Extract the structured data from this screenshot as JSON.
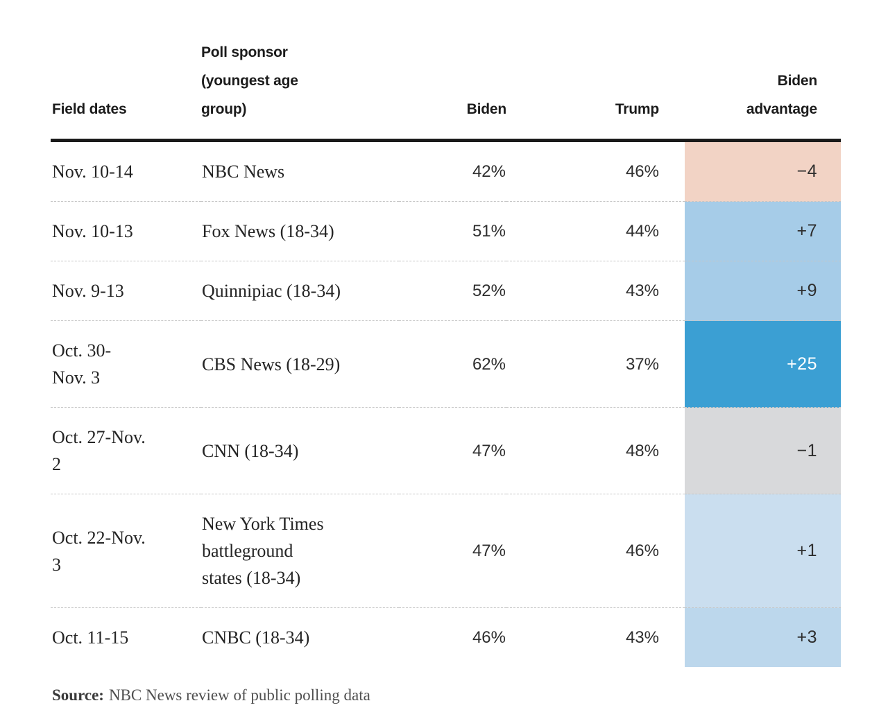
{
  "chart_data": {
    "type": "table",
    "columns": [
      "Field dates",
      "Poll sponsor (youngest age group)",
      "Biden",
      "Trump",
      "Biden advantage"
    ],
    "rows": [
      [
        "Nov. 10-14",
        "NBC News",
        "42%",
        "46%",
        "−4"
      ],
      [
        "Nov. 10-13",
        "Fox News (18-34)",
        "51%",
        "44%",
        "+7"
      ],
      [
        "Nov. 9-13",
        "Quinnipiac (18-34)",
        "52%",
        "43%",
        "+9"
      ],
      [
        "Oct. 30-Nov. 3",
        "CBS News (18-29)",
        "62%",
        "37%",
        "+25"
      ],
      [
        "Oct. 27-Nov. 2",
        "CNN (18-34)",
        "47%",
        "48%",
        "−1"
      ],
      [
        "Oct. 22-Nov. 3",
        "New York Times battleground states (18-34)",
        "47%",
        "46%",
        "+1"
      ],
      [
        "Oct. 11-15",
        "CNBC (18-34)",
        "46%",
        "43%",
        "+3"
      ]
    ],
    "biden_values": [
      42,
      51,
      52,
      62,
      47,
      47,
      46
    ],
    "trump_values": [
      46,
      44,
      43,
      37,
      48,
      46,
      43
    ],
    "advantage_values": [
      -4,
      7,
      9,
      25,
      -1,
      1,
      3
    ],
    "source": "NBC News review of public polling data",
    "legend_position": "none",
    "grid": "dashed-row-separators"
  },
  "colors": {
    "negative_pink": "#f2d3c5",
    "neutral_gray": "#d8d9db",
    "blue_light": "#cadeef",
    "blue_medium_light": "#bcd7ec",
    "blue_medium": "#a6cce8",
    "blue_strong": "#3b9fd3",
    "header_rule": "#1a1a1a",
    "dashed_rule": "#c5c5c5"
  },
  "table": {
    "headers": {
      "dates": "Field dates",
      "sponsor": "Poll sponsor\n(youngest age\ngroup)",
      "biden": "Biden",
      "trump": "Trump",
      "advantage": "Biden\nadvantage"
    },
    "rows": [
      {
        "dates": "Nov. 10-14",
        "sponsor": "NBC News",
        "biden": "42%",
        "trump": "46%",
        "advantage": "−4",
        "advantage_bg": "#f2d3c5",
        "advantage_color": "#2e2e2e"
      },
      {
        "dates": "Nov. 10-13",
        "sponsor": "Fox News (18-34)",
        "biden": "51%",
        "trump": "44%",
        "advantage": "+7",
        "advantage_bg": "#a6cce8",
        "advantage_color": "#2e2e2e"
      },
      {
        "dates": "Nov. 9-13",
        "sponsor": "Quinnipiac (18-34)",
        "biden": "52%",
        "trump": "43%",
        "advantage": "+9",
        "advantage_bg": "#a6cce8",
        "advantage_color": "#2e2e2e"
      },
      {
        "dates": "Oct. 30-\nNov. 3",
        "sponsor": "CBS News (18-29)",
        "biden": "62%",
        "trump": "37%",
        "advantage": "+25",
        "advantage_bg": "#3b9fd3",
        "advantage_color": "#ffffff"
      },
      {
        "dates": "Oct. 27-Nov.\n2",
        "sponsor": "CNN (18-34)",
        "biden": "47%",
        "trump": "48%",
        "advantage": "−1",
        "advantage_bg": "#d8d9db",
        "advantage_color": "#2e2e2e"
      },
      {
        "dates": "Oct. 22-Nov.\n3",
        "sponsor": "New York Times\nbattleground\nstates (18-34)",
        "biden": "47%",
        "trump": "46%",
        "advantage": "+1",
        "advantage_bg": "#cadeef",
        "advantage_color": "#2e2e2e"
      },
      {
        "dates": "Oct. 11-15",
        "sponsor": "CNBC (18-34)",
        "biden": "46%",
        "trump": "43%",
        "advantage": "+3",
        "advantage_bg": "#bcd7ec",
        "advantage_color": "#2e2e2e"
      }
    ]
  },
  "source": {
    "label": "Source:",
    "text": "NBC News review of public polling data"
  }
}
